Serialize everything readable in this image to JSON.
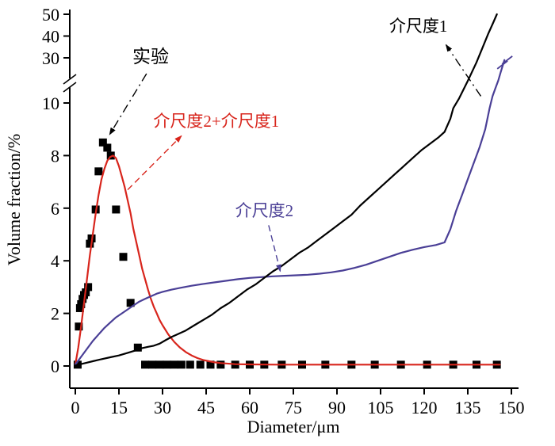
{
  "chart_data": {
    "type": "line",
    "title": "",
    "xlabel": "Diameter/μm",
    "ylabel": "Volume fraction/%",
    "xlim": [
      0,
      150
    ],
    "ylim_lower": [
      0,
      10
    ],
    "ylim_upper": [
      30,
      50
    ],
    "y_axis_break": {
      "lower_max": 10,
      "upper_min": 30
    },
    "grid": false,
    "legend_position": "none (inline annotations)",
    "x_ticks": [
      0,
      15,
      30,
      45,
      60,
      75,
      90,
      105,
      120,
      135,
      150
    ],
    "y_ticks_lower": [
      0,
      2,
      4,
      6,
      8,
      10
    ],
    "y_ticks_upper": [
      30,
      40,
      50
    ],
    "series": [
      {
        "id": "experiment",
        "name": "实验",
        "type": "scatter",
        "marker": "square",
        "color": "#000000",
        "points": [
          [
            0.8,
            0.05
          ],
          [
            1.2,
            1.5
          ],
          [
            1.6,
            2.2
          ],
          [
            2,
            2.35
          ],
          [
            2.5,
            2.55
          ],
          [
            3,
            2.7
          ],
          [
            3.6,
            2.8
          ],
          [
            4.4,
            3.0
          ],
          [
            5,
            4.65
          ],
          [
            5.6,
            4.85
          ],
          [
            7,
            5.95
          ],
          [
            8,
            7.4
          ],
          [
            9.5,
            8.5
          ],
          [
            11,
            8.3
          ],
          [
            12.2,
            8.0
          ],
          [
            14,
            5.95
          ],
          [
            16.5,
            4.15
          ],
          [
            19,
            2.4
          ],
          [
            21.5,
            0.7
          ],
          [
            24,
            0.05
          ],
          [
            26.5,
            0.05
          ],
          [
            29,
            0.05
          ],
          [
            31.5,
            0.05
          ],
          [
            34,
            0.05
          ],
          [
            36.5,
            0.05
          ],
          [
            39.5,
            0.05
          ],
          [
            43,
            0.05
          ],
          [
            46.5,
            0.05
          ],
          [
            50,
            0.05
          ],
          [
            55,
            0.05
          ],
          [
            60,
            0.05
          ],
          [
            65,
            0.05
          ],
          [
            71,
            0.05
          ],
          [
            78,
            0.05
          ],
          [
            86,
            0.05
          ],
          [
            95,
            0.05
          ],
          [
            103,
            0.05
          ],
          [
            112,
            0.05
          ],
          [
            121,
            0.05
          ],
          [
            130,
            0.05
          ],
          [
            138,
            0.05
          ],
          [
            145,
            0.05
          ]
        ]
      },
      {
        "id": "meso2plus1",
        "name": "介尺度2+介尺度1",
        "type": "line",
        "color": "#d8251c",
        "points": [
          [
            0,
            0.05
          ],
          [
            1,
            0.7
          ],
          [
            2,
            1.5
          ],
          [
            3,
            2.4
          ],
          [
            4,
            3.3
          ],
          [
            5,
            4.2
          ],
          [
            6,
            5.0
          ],
          [
            7,
            5.8
          ],
          [
            8,
            6.5
          ],
          [
            9,
            7.1
          ],
          [
            10,
            7.5
          ],
          [
            11,
            7.8
          ],
          [
            12,
            7.95
          ],
          [
            13,
            8.0
          ],
          [
            14,
            7.9
          ],
          [
            15,
            7.6
          ],
          [
            16,
            7.2
          ],
          [
            17,
            6.8
          ],
          [
            18,
            6.3
          ],
          [
            19,
            5.8
          ],
          [
            20,
            5.2
          ],
          [
            21,
            4.7
          ],
          [
            22,
            4.2
          ],
          [
            23,
            3.7
          ],
          [
            24,
            3.3
          ],
          [
            25,
            2.9
          ],
          [
            26,
            2.55
          ],
          [
            27,
            2.25
          ],
          [
            28,
            2.0
          ],
          [
            29,
            1.75
          ],
          [
            30,
            1.55
          ],
          [
            32,
            1.2
          ],
          [
            34,
            0.92
          ],
          [
            36,
            0.7
          ],
          [
            38,
            0.53
          ],
          [
            40,
            0.4
          ],
          [
            42,
            0.3
          ],
          [
            44,
            0.23
          ],
          [
            46,
            0.18
          ],
          [
            48,
            0.14
          ],
          [
            50,
            0.11
          ],
          [
            55,
            0.07
          ],
          [
            60,
            0.06
          ],
          [
            70,
            0.05
          ],
          [
            80,
            0.05
          ],
          [
            90,
            0.05
          ],
          [
            100,
            0.05
          ],
          [
            110,
            0.05
          ],
          [
            120,
            0.05
          ],
          [
            130,
            0.05
          ],
          [
            140,
            0.05
          ],
          [
            146,
            0.05
          ]
        ]
      },
      {
        "id": "meso2",
        "name": "介尺度2",
        "type": "line",
        "color": "#4a3f96",
        "end_break_mark": true,
        "points": [
          [
            0,
            0.05
          ],
          [
            2,
            0.35
          ],
          [
            4,
            0.65
          ],
          [
            6,
            0.95
          ],
          [
            8,
            1.2
          ],
          [
            10,
            1.45
          ],
          [
            12,
            1.65
          ],
          [
            14,
            1.85
          ],
          [
            16,
            2.0
          ],
          [
            18,
            2.15
          ],
          [
            20,
            2.3
          ],
          [
            22,
            2.45
          ],
          [
            24,
            2.55
          ],
          [
            26,
            2.65
          ],
          [
            28,
            2.75
          ],
          [
            30,
            2.82
          ],
          [
            33,
            2.9
          ],
          [
            36,
            2.97
          ],
          [
            40,
            3.05
          ],
          [
            44,
            3.12
          ],
          [
            48,
            3.18
          ],
          [
            52,
            3.24
          ],
          [
            56,
            3.3
          ],
          [
            60,
            3.35
          ],
          [
            64,
            3.38
          ],
          [
            68,
            3.41
          ],
          [
            72,
            3.43
          ],
          [
            76,
            3.45
          ],
          [
            80,
            3.47
          ],
          [
            84,
            3.51
          ],
          [
            88,
            3.56
          ],
          [
            92,
            3.63
          ],
          [
            96,
            3.73
          ],
          [
            100,
            3.85
          ],
          [
            104,
            4.0
          ],
          [
            108,
            4.15
          ],
          [
            112,
            4.3
          ],
          [
            116,
            4.42
          ],
          [
            120,
            4.52
          ],
          [
            124,
            4.6
          ],
          [
            127,
            4.7
          ],
          [
            129,
            5.2
          ],
          [
            131,
            5.9
          ],
          [
            133,
            6.5
          ],
          [
            135,
            7.1
          ],
          [
            137,
            7.7
          ],
          [
            139,
            8.3
          ],
          [
            141,
            9.0
          ],
          [
            142.5,
            9.8
          ],
          [
            143.5,
            13
          ],
          [
            144.5,
            16.5
          ],
          [
            145.5,
            20
          ],
          [
            146.3,
            23.5
          ],
          [
            147,
            26.5
          ],
          [
            147.6,
            29
          ]
        ]
      },
      {
        "id": "meso1",
        "name": "介尺度1",
        "type": "line",
        "color": "#000000",
        "points": [
          [
            0,
            0.02
          ],
          [
            3,
            0.1
          ],
          [
            6,
            0.18
          ],
          [
            9,
            0.26
          ],
          [
            12,
            0.33
          ],
          [
            15,
            0.4
          ],
          [
            18,
            0.5
          ],
          [
            21,
            0.6
          ],
          [
            23,
            0.68
          ],
          [
            25,
            0.73
          ],
          [
            27,
            0.77
          ],
          [
            29,
            0.85
          ],
          [
            31,
            0.98
          ],
          [
            33,
            1.1
          ],
          [
            35,
            1.2
          ],
          [
            38,
            1.35
          ],
          [
            41,
            1.55
          ],
          [
            44,
            1.75
          ],
          [
            47,
            1.95
          ],
          [
            50,
            2.2
          ],
          [
            53,
            2.4
          ],
          [
            56,
            2.65
          ],
          [
            59,
            2.9
          ],
          [
            62,
            3.1
          ],
          [
            65,
            3.35
          ],
          [
            68,
            3.6
          ],
          [
            71,
            3.8
          ],
          [
            74,
            4.05
          ],
          [
            77,
            4.3
          ],
          [
            80,
            4.5
          ],
          [
            83,
            4.75
          ],
          [
            86,
            5.0
          ],
          [
            89,
            5.25
          ],
          [
            92,
            5.5
          ],
          [
            95,
            5.75
          ],
          [
            98,
            6.1
          ],
          [
            101,
            6.4
          ],
          [
            104,
            6.7
          ],
          [
            107,
            7.0
          ],
          [
            110,
            7.3
          ],
          [
            113,
            7.6
          ],
          [
            116,
            7.9
          ],
          [
            119,
            8.2
          ],
          [
            122,
            8.45
          ],
          [
            125,
            8.7
          ],
          [
            127,
            8.9
          ],
          [
            129,
            9.4
          ],
          [
            130,
            9.8
          ],
          [
            132,
            12
          ],
          [
            135,
            19.8
          ],
          [
            138,
            28
          ],
          [
            140,
            34.4
          ],
          [
            142,
            41
          ],
          [
            143.7,
            46
          ],
          [
            145,
            50
          ]
        ]
      }
    ],
    "annotations": [
      {
        "id": "exp",
        "text": "实验",
        "color": "#000000",
        "font_size": 23,
        "dash": "dashdot",
        "text_xy": [
          25.9,
          30.4
        ],
        "arrow": {
          "from": [
            24.5,
            23.0
          ],
          "to": [
            11.8,
            8.8
          ]
        }
      },
      {
        "id": "red",
        "text": "介尺度2+介尺度1",
        "color": "#d8251c",
        "font_size": 21,
        "dash": "dashed",
        "text_xy": [
          48.5,
          9.3
        ],
        "arrow": {
          "from": [
            18.0,
            6.7
          ],
          "to": [
            36.5,
            8.75
          ]
        }
      },
      {
        "id": "blue",
        "text": "介尺度2",
        "color": "#4a3f96",
        "font_size": 21,
        "dash": "dashed",
        "text_xy": [
          65.0,
          5.9
        ],
        "arrow": {
          "from": [
            66.5,
            5.35
          ],
          "to": [
            70.5,
            3.6
          ]
        }
      },
      {
        "id": "meso1",
        "text": "介尺度1",
        "color": "#000000",
        "font_size": 21,
        "dash": "dashdot",
        "text_xy": [
          118.0,
          44.5
        ],
        "arrow": {
          "from": [
            139.5,
            13.0
          ],
          "to": [
            127.5,
            36.0
          ]
        }
      }
    ]
  }
}
